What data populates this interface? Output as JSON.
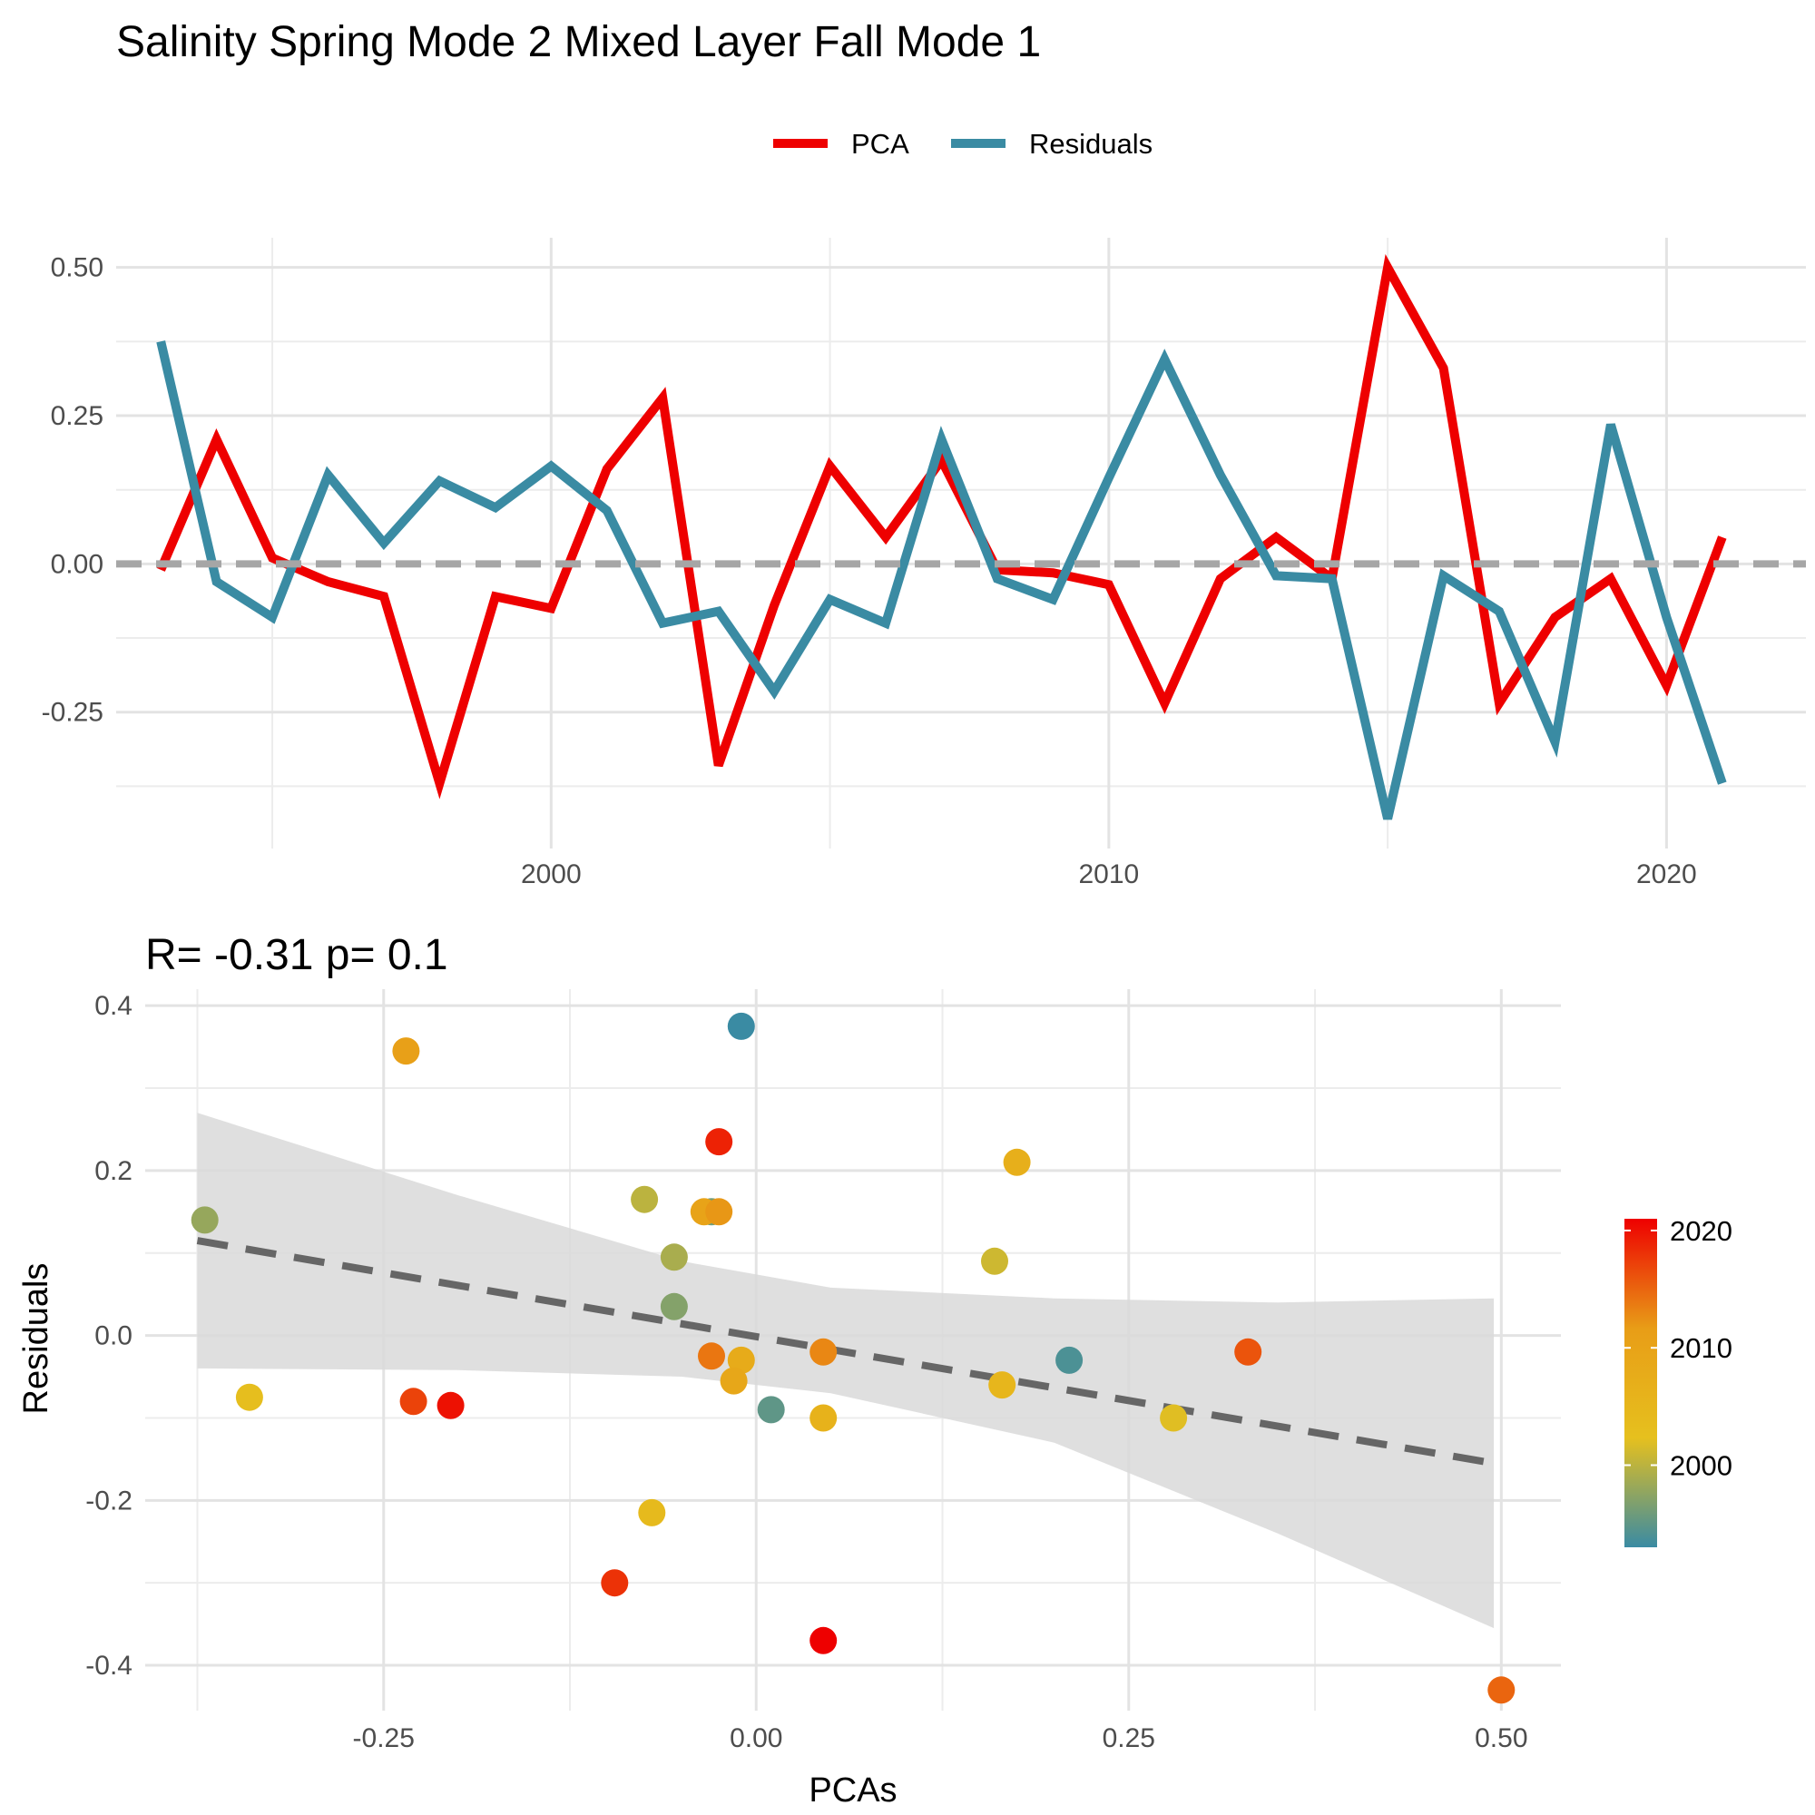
{
  "chart_data": [
    {
      "type": "line",
      "title": "Salinity Spring Mode 2 Mixed Layer Fall Mode 1",
      "xlim": [
        1992.2,
        2022.5
      ],
      "ylim": [
        -0.48,
        0.55
      ],
      "x_ticks": [
        2000,
        2010,
        2020
      ],
      "x_tick_labels": [
        "2000",
        "2010",
        "2020"
      ],
      "y_ticks": [
        -0.25,
        0.0,
        0.25,
        0.5
      ],
      "y_tick_labels": [
        "-0.25",
        "0.00",
        "0.25",
        "0.50"
      ],
      "reference_line": 0.0,
      "grid": true,
      "legend": {
        "position": "top",
        "entries": [
          "PCA",
          "Residuals"
        ]
      },
      "x": [
        1993,
        1994,
        1995,
        1996,
        1997,
        1998,
        1999,
        2000,
        2001,
        2002,
        2003,
        2004,
        2005,
        2006,
        2007,
        2008,
        2009,
        2010,
        2011,
        2012,
        2013,
        2014,
        2015,
        2016,
        2017,
        2018,
        2019,
        2020,
        2021
      ],
      "series": [
        {
          "name": "PCA",
          "color": "#ee0000",
          "values": [
            -0.01,
            0.21,
            0.01,
            -0.03,
            -0.055,
            -0.37,
            -0.055,
            -0.075,
            0.16,
            0.28,
            -0.34,
            -0.07,
            0.165,
            0.045,
            0.175,
            -0.01,
            -0.015,
            -0.035,
            -0.235,
            -0.025,
            0.045,
            -0.025,
            0.5,
            0.33,
            -0.235,
            -0.09,
            -0.025,
            -0.205,
            0.045
          ]
        },
        {
          "name": "Residuals",
          "color": "#3a8ba3",
          "values": [
            0.375,
            -0.03,
            -0.09,
            0.15,
            0.035,
            0.14,
            0.095,
            0.165,
            0.09,
            -0.1,
            -0.08,
            -0.215,
            -0.06,
            -0.1,
            0.21,
            -0.025,
            -0.06,
            0.145,
            0.345,
            0.15,
            -0.02,
            -0.025,
            -0.43,
            -0.02,
            -0.08,
            -0.3,
            0.235,
            -0.09,
            -0.37
          ]
        }
      ]
    },
    {
      "type": "scatter",
      "subtitle": "R= -0.31  p= 0.1",
      "xlabel": "PCAs",
      "ylabel": "Residuals",
      "xlim": [
        -0.41,
        0.54
      ],
      "ylim": [
        -0.455,
        0.42
      ],
      "x_ticks": [
        -0.25,
        0.0,
        0.25,
        0.5
      ],
      "x_tick_labels": [
        "-0.25",
        "0.00",
        "0.25",
        "0.50"
      ],
      "y_ticks": [
        -0.4,
        -0.2,
        0.0,
        0.2,
        0.4
      ],
      "y_tick_labels": [
        "-0.4",
        "-0.2",
        "0.0",
        "0.2",
        "0.4"
      ],
      "grid": true,
      "trend_line": {
        "x": [
          -0.375,
          0.495
        ],
        "y": [
          0.115,
          -0.155
        ],
        "style": "dashed",
        "color": "#666666"
      },
      "confidence_band": {
        "x": [
          -0.375,
          -0.2,
          -0.05,
          0.05,
          0.2,
          0.35,
          0.495
        ],
        "upper": [
          0.27,
          0.17,
          0.09,
          0.058,
          0.045,
          0.04,
          0.045
        ],
        "lower": [
          -0.04,
          -0.042,
          -0.05,
          -0.07,
          -0.13,
          -0.24,
          -0.355
        ],
        "color": "#d9d9d9"
      },
      "colorbar": {
        "title": "",
        "min": 1993,
        "max": 2021,
        "ticks": [
          2000,
          2010,
          2020
        ],
        "tick_labels": [
          "2000",
          "2010",
          "2020"
        ],
        "colors": [
          "#3a8ba3",
          "#e6c01e",
          "#e89d17",
          "#ee0000"
        ]
      },
      "points": [
        {
          "year": 1993,
          "x": -0.01,
          "y": 0.375
        },
        {
          "year": 1994,
          "x": 0.21,
          "y": -0.03
        },
        {
          "year": 1995,
          "x": 0.01,
          "y": -0.09
        },
        {
          "year": 1996,
          "x": -0.03,
          "y": 0.15
        },
        {
          "year": 1997,
          "x": -0.055,
          "y": 0.035
        },
        {
          "year": 1998,
          "x": -0.37,
          "y": 0.14
        },
        {
          "year": 1999,
          "x": -0.055,
          "y": 0.095
        },
        {
          "year": 2000,
          "x": -0.075,
          "y": 0.165
        },
        {
          "year": 2001,
          "x": 0.16,
          "y": 0.09
        },
        {
          "year": 2002,
          "x": 0.28,
          "y": -0.1
        },
        {
          "year": 2003,
          "x": -0.34,
          "y": -0.075
        },
        {
          "year": 2004,
          "x": -0.07,
          "y": -0.215
        },
        {
          "year": 2005,
          "x": 0.165,
          "y": -0.06
        },
        {
          "year": 2006,
          "x": 0.045,
          "y": -0.1
        },
        {
          "year": 2007,
          "x": 0.175,
          "y": 0.21
        },
        {
          "year": 2008,
          "x": -0.01,
          "y": -0.03
        },
        {
          "year": 2009,
          "x": -0.015,
          "y": -0.055
        },
        {
          "year": 2010,
          "x": -0.035,
          "y": 0.15
        },
        {
          "year": 2011,
          "x": -0.235,
          "y": 0.345
        },
        {
          "year": 2012,
          "x": -0.025,
          "y": 0.15
        },
        {
          "year": 2013,
          "x": 0.045,
          "y": -0.02
        },
        {
          "year": 2014,
          "x": -0.03,
          "y": -0.025
        },
        {
          "year": 2015,
          "x": 0.5,
          "y": -0.43
        },
        {
          "year": 2016,
          "x": 0.33,
          "y": -0.02
        },
        {
          "year": 2017,
          "x": -0.23,
          "y": -0.08
        },
        {
          "year": 2018,
          "x": -0.095,
          "y": -0.3
        },
        {
          "year": 2019,
          "x": -0.025,
          "y": 0.235
        },
        {
          "year": 2020,
          "x": -0.205,
          "y": -0.085
        },
        {
          "year": 2021,
          "x": 0.045,
          "y": -0.37
        }
      ]
    }
  ]
}
